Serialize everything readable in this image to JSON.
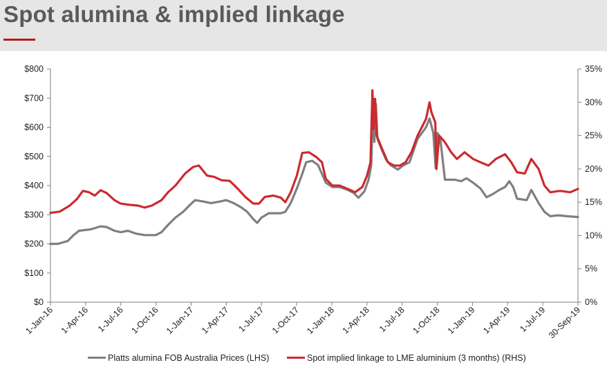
{
  "header": {
    "title": "Spot alumina & implied linkage"
  },
  "colors": {
    "grey_series": "#7f7f7f",
    "red_series": "#cc2a2e",
    "accent": "#b31b1b"
  },
  "chart_data": {
    "type": "line",
    "title": "Spot alumina & implied linkage",
    "x_tick_labels": [
      "1-Jan-16",
      "1-Apr-16",
      "1-Jul-16",
      "1-Oct-16",
      "1-Jan-17",
      "1-Apr-17",
      "1-Jul-17",
      "1-Oct-17",
      "1-Jan-18",
      "1-Apr-18",
      "1-Jul-18",
      "1-Oct-18",
      "1-Jan-19",
      "1-Apr-19",
      "1-Jul-19",
      "30-Sep-19"
    ],
    "y_left": {
      "ticks": [
        "$0",
        "$100",
        "$200",
        "$300",
        "$400",
        "$500",
        "$600",
        "$700",
        "$800"
      ],
      "lim": [
        0,
        800
      ]
    },
    "y_right": {
      "ticks": [
        "0%",
        "5%",
        "10%",
        "15%",
        "20%",
        "25%",
        "30%",
        "35%"
      ],
      "lim": [
        0,
        35
      ]
    },
    "legend_position": "bottom",
    "series": [
      {
        "name": "Platts alumina FOB Australia Prices (LHS)",
        "axis": "left",
        "points": [
          [
            "2016-01-01",
            200
          ],
          [
            "2016-01-20",
            200
          ],
          [
            "2016-02-15",
            210
          ],
          [
            "2016-03-01",
            230
          ],
          [
            "2016-03-15",
            245
          ],
          [
            "2016-04-15",
            250
          ],
          [
            "2016-05-10",
            260
          ],
          [
            "2016-05-25",
            258
          ],
          [
            "2016-06-15",
            245
          ],
          [
            "2016-07-01",
            240
          ],
          [
            "2016-07-20",
            245
          ],
          [
            "2016-08-10",
            235
          ],
          [
            "2016-09-01",
            230
          ],
          [
            "2016-09-30",
            230
          ],
          [
            "2016-10-15",
            240
          ],
          [
            "2016-11-01",
            265
          ],
          [
            "2016-11-20",
            290
          ],
          [
            "2016-12-10",
            310
          ],
          [
            "2016-12-25",
            330
          ],
          [
            "2017-01-10",
            350
          ],
          [
            "2017-02-01",
            345
          ],
          [
            "2017-02-20",
            340
          ],
          [
            "2017-03-15",
            345
          ],
          [
            "2017-04-01",
            350
          ],
          [
            "2017-04-20",
            340
          ],
          [
            "2017-05-10",
            325
          ],
          [
            "2017-05-25",
            310
          ],
          [
            "2017-06-10",
            285
          ],
          [
            "2017-06-20",
            272
          ],
          [
            "2017-07-01",
            290
          ],
          [
            "2017-07-20",
            305
          ],
          [
            "2017-08-20",
            305
          ],
          [
            "2017-09-01",
            310
          ],
          [
            "2017-09-15",
            340
          ],
          [
            "2017-10-01",
            390
          ],
          [
            "2017-10-15",
            440
          ],
          [
            "2017-10-25",
            480
          ],
          [
            "2017-11-10",
            485
          ],
          [
            "2017-11-25",
            470
          ],
          [
            "2017-12-05",
            440
          ],
          [
            "2017-12-15",
            410
          ],
          [
            "2018-01-01",
            395
          ],
          [
            "2018-01-20",
            395
          ],
          [
            "2018-02-10",
            385
          ],
          [
            "2018-02-25",
            375
          ],
          [
            "2018-03-10",
            358
          ],
          [
            "2018-03-25",
            380
          ],
          [
            "2018-04-05",
            420
          ],
          [
            "2018-04-12",
            470
          ],
          [
            "2018-04-17",
            700
          ],
          [
            "2018-04-20",
            550
          ],
          [
            "2018-04-24",
            680
          ],
          [
            "2018-04-28",
            560
          ],
          [
            "2018-05-10",
            520
          ],
          [
            "2018-05-20",
            490
          ],
          [
            "2018-06-01",
            470
          ],
          [
            "2018-06-20",
            455
          ],
          [
            "2018-07-05",
            470
          ],
          [
            "2018-07-20",
            480
          ],
          [
            "2018-08-10",
            560
          ],
          [
            "2018-09-01",
            600
          ],
          [
            "2018-09-10",
            630
          ],
          [
            "2018-09-20",
            580
          ],
          [
            "2018-09-26",
            460
          ],
          [
            "2018-10-01",
            580
          ],
          [
            "2018-10-08",
            560
          ],
          [
            "2018-10-20",
            420
          ],
          [
            "2018-11-15",
            420
          ],
          [
            "2018-12-01",
            415
          ],
          [
            "2018-12-15",
            425
          ],
          [
            "2019-01-01",
            410
          ],
          [
            "2019-01-20",
            390
          ],
          [
            "2019-02-05",
            360
          ],
          [
            "2019-02-20",
            370
          ],
          [
            "2019-03-10",
            385
          ],
          [
            "2019-03-25",
            395
          ],
          [
            "2019-04-05",
            415
          ],
          [
            "2019-04-15",
            395
          ],
          [
            "2019-04-25",
            355
          ],
          [
            "2019-05-20",
            350
          ],
          [
            "2019-06-01",
            385
          ],
          [
            "2019-06-20",
            340
          ],
          [
            "2019-07-05",
            310
          ],
          [
            "2019-07-20",
            295
          ],
          [
            "2019-08-10",
            298
          ],
          [
            "2019-09-01",
            295
          ],
          [
            "2019-09-30",
            292
          ]
        ]
      },
      {
        "name": "Spot implied linkage to LME aluminium (3 months) (RHS)",
        "axis": "right",
        "points": [
          [
            "2016-01-01",
            13.4
          ],
          [
            "2016-01-25",
            13.6
          ],
          [
            "2016-02-20",
            14.5
          ],
          [
            "2016-03-10",
            15.5
          ],
          [
            "2016-03-25",
            16.7
          ],
          [
            "2016-04-10",
            16.5
          ],
          [
            "2016-04-25",
            16.0
          ],
          [
            "2016-05-10",
            16.8
          ],
          [
            "2016-05-25",
            16.4
          ],
          [
            "2016-06-15",
            15.3
          ],
          [
            "2016-07-01",
            14.8
          ],
          [
            "2016-07-25",
            14.6
          ],
          [
            "2016-08-15",
            14.5
          ],
          [
            "2016-09-01",
            14.2
          ],
          [
            "2016-09-20",
            14.5
          ],
          [
            "2016-10-15",
            15.3
          ],
          [
            "2016-11-01",
            16.5
          ],
          [
            "2016-11-20",
            17.5
          ],
          [
            "2016-12-15",
            19.3
          ],
          [
            "2017-01-05",
            20.3
          ],
          [
            "2017-01-20",
            20.5
          ],
          [
            "2017-02-10",
            19.0
          ],
          [
            "2017-03-01",
            18.8
          ],
          [
            "2017-03-20",
            18.3
          ],
          [
            "2017-04-10",
            18.2
          ],
          [
            "2017-05-01",
            17.0
          ],
          [
            "2017-05-20",
            15.8
          ],
          [
            "2017-06-10",
            14.8
          ],
          [
            "2017-06-25",
            14.8
          ],
          [
            "2017-07-10",
            15.8
          ],
          [
            "2017-08-01",
            16.0
          ],
          [
            "2017-08-20",
            15.7
          ],
          [
            "2017-09-01",
            15.0
          ],
          [
            "2017-09-15",
            16.5
          ],
          [
            "2017-10-01",
            19.0
          ],
          [
            "2017-10-15",
            22.4
          ],
          [
            "2017-11-01",
            22.5
          ],
          [
            "2017-11-20",
            21.8
          ],
          [
            "2017-12-05",
            21.0
          ],
          [
            "2017-12-15",
            18.5
          ],
          [
            "2018-01-01",
            17.5
          ],
          [
            "2018-01-20",
            17.5
          ],
          [
            "2018-02-10",
            17.0
          ],
          [
            "2018-03-01",
            16.5
          ],
          [
            "2018-03-20",
            17.3
          ],
          [
            "2018-04-01",
            19.0
          ],
          [
            "2018-04-10",
            21.0
          ],
          [
            "2018-04-15",
            31.8
          ],
          [
            "2018-04-18",
            26.0
          ],
          [
            "2018-04-22",
            30.5
          ],
          [
            "2018-04-26",
            25.0
          ],
          [
            "2018-05-10",
            23.0
          ],
          [
            "2018-05-25",
            21.0
          ],
          [
            "2018-06-10",
            20.5
          ],
          [
            "2018-06-25",
            20.5
          ],
          [
            "2018-07-10",
            21.0
          ],
          [
            "2018-07-25",
            22.5
          ],
          [
            "2018-08-10",
            25.0
          ],
          [
            "2018-09-01",
            27.5
          ],
          [
            "2018-09-10",
            30.0
          ],
          [
            "2018-09-15",
            28.5
          ],
          [
            "2018-09-25",
            27.0
          ],
          [
            "2018-09-28",
            20.0
          ],
          [
            "2018-10-05",
            25.0
          ],
          [
            "2018-10-20",
            24.0
          ],
          [
            "2018-11-05",
            22.5
          ],
          [
            "2018-11-20",
            21.5
          ],
          [
            "2018-12-10",
            22.5
          ],
          [
            "2019-01-01",
            21.5
          ],
          [
            "2019-01-20",
            21.0
          ],
          [
            "2019-02-10",
            20.5
          ],
          [
            "2019-03-01",
            21.5
          ],
          [
            "2019-03-25",
            22.2
          ],
          [
            "2019-04-10",
            21.0
          ],
          [
            "2019-04-25",
            19.5
          ],
          [
            "2019-05-15",
            19.3
          ],
          [
            "2019-06-01",
            21.5
          ],
          [
            "2019-06-20",
            20.0
          ],
          [
            "2019-07-05",
            17.5
          ],
          [
            "2019-07-20",
            16.5
          ],
          [
            "2019-08-15",
            16.7
          ],
          [
            "2019-09-10",
            16.5
          ],
          [
            "2019-09-30",
            17.0
          ]
        ]
      }
    ]
  },
  "legend": {
    "grey_label": "Platts alumina FOB Australia Prices (LHS)",
    "red_label": "Spot implied linkage to LME aluminium (3 months) (RHS)"
  }
}
